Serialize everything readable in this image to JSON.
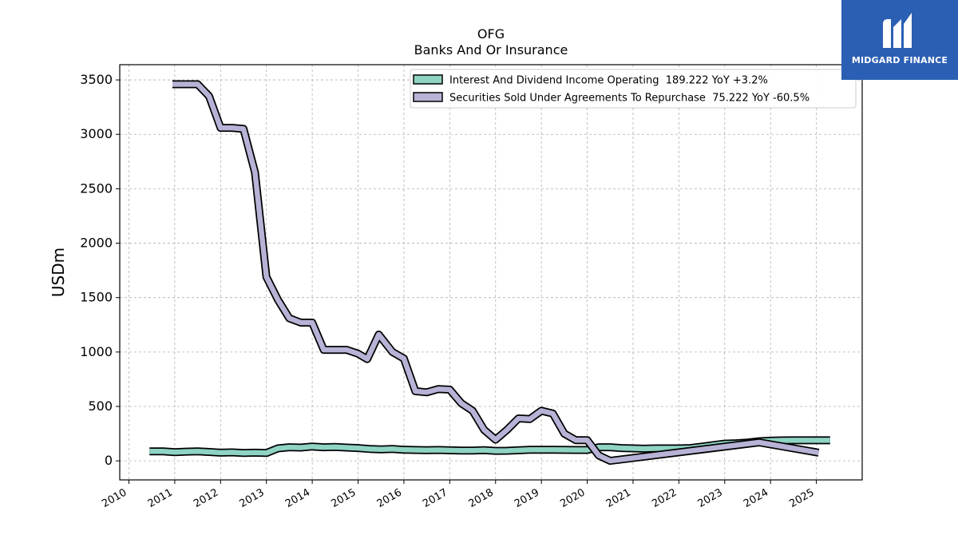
{
  "brand": {
    "name": "MIDGARD FINANCE",
    "icon": "midgard-logo-icon",
    "color": "#2b5fb4"
  },
  "chart_data": {
    "type": "line",
    "title": "OFG",
    "subtitle": "Banks And Or Insurance",
    "xlabel": "",
    "ylabel": "USDm",
    "xlim": [
      2009.8,
      2026.0
    ],
    "ylim": [
      -175,
      3640
    ],
    "x_ticks": [
      2010,
      2011,
      2012,
      2013,
      2014,
      2015,
      2016,
      2017,
      2018,
      2019,
      2020,
      2021,
      2022,
      2023,
      2024,
      2025
    ],
    "y_ticks": [
      0,
      500,
      1000,
      1500,
      2000,
      2500,
      3000,
      3500
    ],
    "grid": true,
    "legend_position": "top-right",
    "series": [
      {
        "name": "Interest And Dividend Income Operating  189.222 YoY +3.2%",
        "color": "#8fd3c3",
        "points": [
          [
            2010.45,
            88
          ],
          [
            2010.75,
            88
          ],
          [
            2011.0,
            80
          ],
          [
            2011.25,
            85
          ],
          [
            2011.5,
            88
          ],
          [
            2011.75,
            82
          ],
          [
            2012.0,
            75
          ],
          [
            2012.25,
            78
          ],
          [
            2012.5,
            72
          ],
          [
            2012.75,
            75
          ],
          [
            2013.0,
            72
          ],
          [
            2013.25,
            115
          ],
          [
            2013.5,
            125
          ],
          [
            2013.75,
            122
          ],
          [
            2014.0,
            132
          ],
          [
            2014.25,
            125
          ],
          [
            2014.5,
            127
          ],
          [
            2014.75,
            122
          ],
          [
            2015.0,
            118
          ],
          [
            2015.25,
            110
          ],
          [
            2015.5,
            105
          ],
          [
            2015.75,
            110
          ],
          [
            2016.0,
            102
          ],
          [
            2016.25,
            100
          ],
          [
            2016.5,
            98
          ],
          [
            2016.75,
            100
          ],
          [
            2017.0,
            97
          ],
          [
            2017.25,
            95
          ],
          [
            2017.5,
            95
          ],
          [
            2017.75,
            98
          ],
          [
            2018.0,
            92
          ],
          [
            2018.25,
            93
          ],
          [
            2018.5,
            97
          ],
          [
            2018.75,
            102
          ],
          [
            2019.0,
            102
          ],
          [
            2019.25,
            102
          ],
          [
            2019.5,
            101
          ],
          [
            2019.75,
            100
          ],
          [
            2020.0,
            100
          ],
          [
            2020.25,
            125
          ],
          [
            2020.5,
            125
          ],
          [
            2020.75,
            118
          ],
          [
            2021.0,
            115
          ],
          [
            2021.25,
            112
          ],
          [
            2021.5,
            115
          ],
          [
            2021.75,
            115
          ],
          [
            2022.0,
            115
          ],
          [
            2022.25,
            118
          ],
          [
            2022.5,
            130
          ],
          [
            2022.75,
            145
          ],
          [
            2023.0,
            158
          ],
          [
            2023.25,
            162
          ],
          [
            2023.5,
            168
          ],
          [
            2023.75,
            180
          ],
          [
            2024.0,
            185
          ],
          [
            2024.25,
            188
          ],
          [
            2024.5,
            189
          ],
          [
            2024.75,
            189
          ],
          [
            2025.0,
            189
          ],
          [
            2025.3,
            189.222
          ]
        ]
      },
      {
        "name": "Securities Sold Under Agreements To Repurchase  75.222 YoY -60.5%",
        "color": "#b6b3d6",
        "points": [
          [
            2010.95,
            3460
          ],
          [
            2011.25,
            3460
          ],
          [
            2011.5,
            3460
          ],
          [
            2011.75,
            3350
          ],
          [
            2012.0,
            3060
          ],
          [
            2012.25,
            3060
          ],
          [
            2012.5,
            3050
          ],
          [
            2012.75,
            2650
          ],
          [
            2013.0,
            1690
          ],
          [
            2013.25,
            1480
          ],
          [
            2013.5,
            1310
          ],
          [
            2013.75,
            1270
          ],
          [
            2014.0,
            1270
          ],
          [
            2014.25,
            1020
          ],
          [
            2014.5,
            1020
          ],
          [
            2014.75,
            1020
          ],
          [
            2015.0,
            985
          ],
          [
            2015.2,
            935
          ],
          [
            2015.45,
            1160
          ],
          [
            2015.75,
            1000
          ],
          [
            2016.0,
            940
          ],
          [
            2016.25,
            640
          ],
          [
            2016.5,
            630
          ],
          [
            2016.75,
            660
          ],
          [
            2017.0,
            655
          ],
          [
            2017.25,
            530
          ],
          [
            2017.5,
            460
          ],
          [
            2017.75,
            285
          ],
          [
            2018.0,
            195
          ],
          [
            2018.25,
            285
          ],
          [
            2018.5,
            390
          ],
          [
            2018.75,
            385
          ],
          [
            2019.0,
            460
          ],
          [
            2019.25,
            435
          ],
          [
            2019.5,
            250
          ],
          [
            2019.75,
            190
          ],
          [
            2020.0,
            190
          ],
          [
            2020.25,
            50
          ],
          [
            2020.5,
            0
          ],
          [
            2023.75,
            170
          ],
          [
            2025.05,
            75.222
          ]
        ]
      }
    ]
  }
}
